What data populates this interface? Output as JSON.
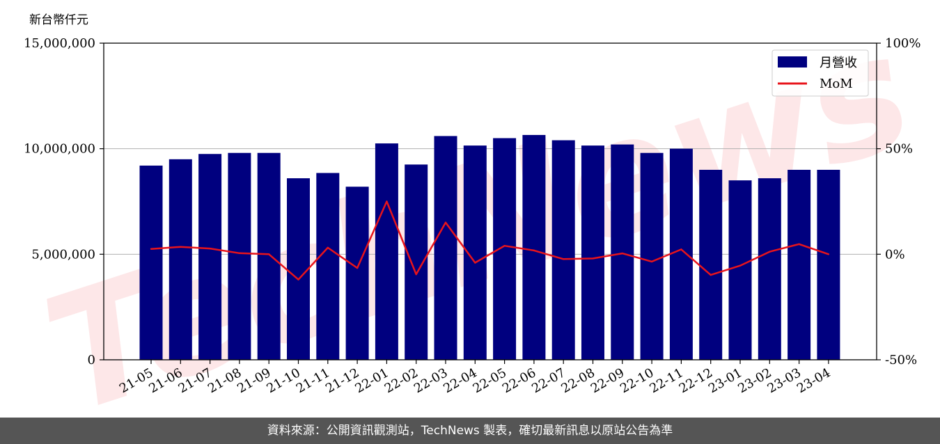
{
  "unit_label": "新台幣仟元",
  "footer_text": "資料來源：公開資訊觀測站，TechNews 製表，確切最新訊息以原站公告為準",
  "watermark_text": "TechNews",
  "chart_data": {
    "type": "bar",
    "categories": [
      "21-05",
      "21-06",
      "21-07",
      "21-08",
      "21-09",
      "21-10",
      "21-11",
      "21-12",
      "22-01",
      "22-02",
      "22-03",
      "22-04",
      "22-05",
      "22-06",
      "22-07",
      "22-08",
      "22-09",
      "22-10",
      "22-11",
      "22-12",
      "23-01",
      "23-02",
      "23-03",
      "23-04"
    ],
    "series": [
      {
        "name": "月營收",
        "axis": "left",
        "type": "bar",
        "color": "#00007f",
        "values": [
          9200000,
          9500000,
          9750000,
          9800000,
          9800000,
          8600000,
          8850000,
          8200000,
          10250000,
          9250000,
          10600000,
          10150000,
          10500000,
          10650000,
          10400000,
          10150000,
          10200000,
          9800000,
          10000000,
          9000000,
          8500000,
          8600000,
          9000000,
          9000000
        ]
      },
      {
        "name": "MoM",
        "axis": "right",
        "type": "line",
        "color": "#e8141b",
        "values": [
          2.5,
          3.5,
          2.7,
          0.5,
          0.0,
          -12.0,
          3.1,
          -6.5,
          25.0,
          -9.5,
          15.0,
          -4.0,
          4.0,
          1.8,
          -2.3,
          -2.0,
          0.4,
          -3.5,
          2.3,
          -9.8,
          -5.4,
          1.2,
          4.8,
          0.0
        ]
      }
    ],
    "y_left": {
      "ylim": [
        0,
        15000000
      ],
      "ticks": [
        0,
        5000000,
        10000000,
        15000000
      ],
      "tick_labels": [
        "0",
        "5,000,000",
        "10,000,000",
        "15,000,000"
      ]
    },
    "y_right": {
      "ylim": [
        -50,
        100
      ],
      "ticks": [
        -50,
        0,
        50,
        100
      ],
      "tick_labels": [
        "-50%",
        "0%",
        "50%",
        "100%"
      ]
    },
    "grid": "horizontal",
    "legend_position": "top-right"
  }
}
